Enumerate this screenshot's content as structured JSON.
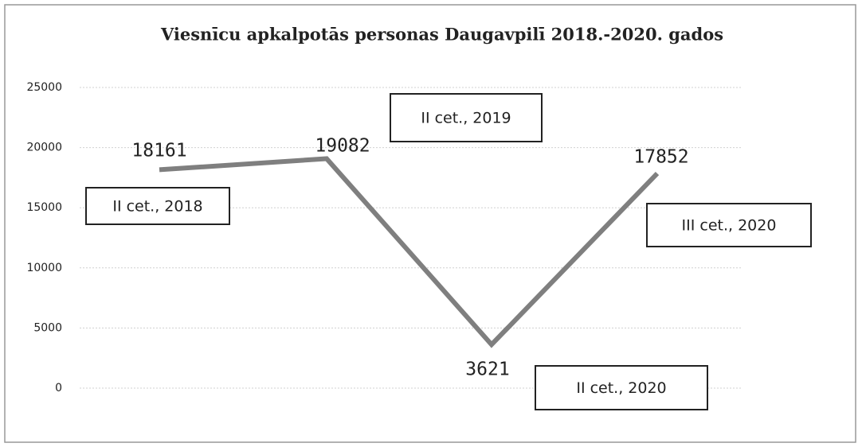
{
  "chart_data": {
    "type": "line",
    "title": "Viesnīcu apkalpotās personas Daugavpilī 2018.-2020. gados",
    "categories": [
      "II cet., 2018",
      "II cet., 2019",
      "II cet., 2020",
      "III cet., 2020"
    ],
    "values": [
      18161,
      19082,
      3621,
      17852
    ],
    "color": "#7f7f7f",
    "ylim": [
      0,
      25000
    ],
    "yticks": [
      0,
      5000,
      10000,
      15000,
      20000,
      25000
    ],
    "grid": true
  }
}
